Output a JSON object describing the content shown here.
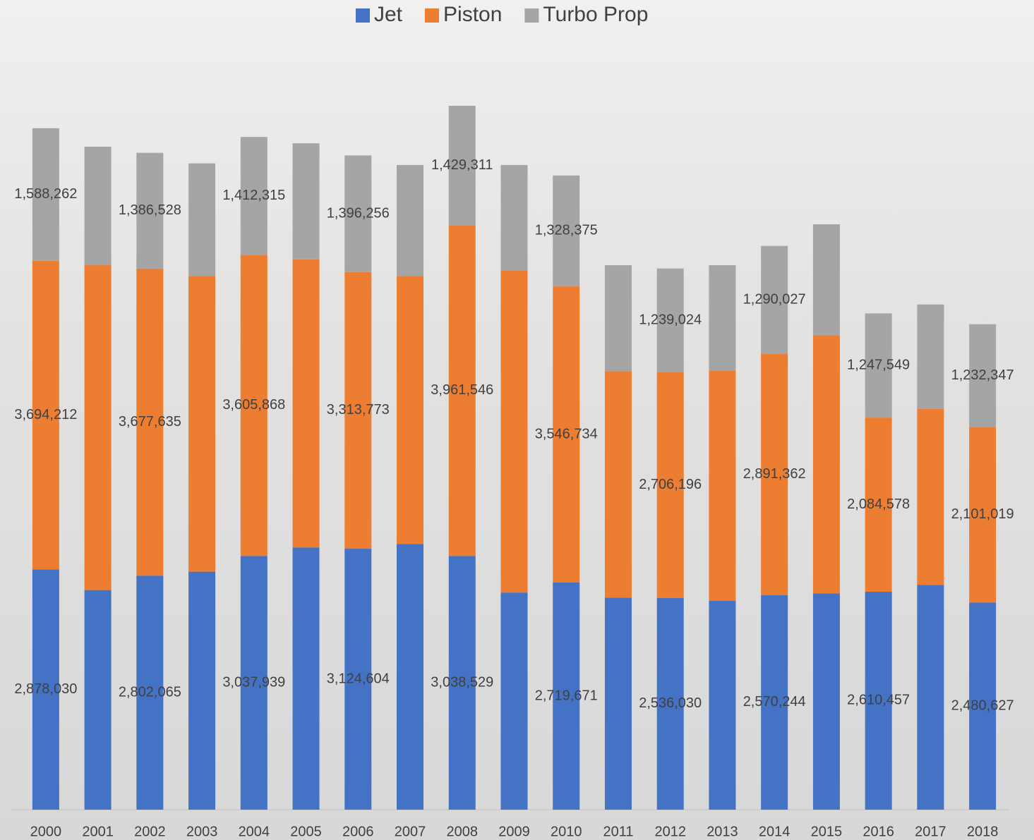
{
  "chart_data": {
    "type": "stacked-bar",
    "categories": [
      "2000",
      "2001",
      "2002",
      "2003",
      "2004",
      "2005",
      "2006",
      "2007",
      "2008",
      "2009",
      "2010",
      "2011",
      "2012",
      "2013",
      "2014",
      "2015",
      "2016",
      "2017",
      "2018"
    ],
    "series": [
      {
        "name": "Jet",
        "color": "#4472c4",
        "values": [
          2878030,
          2630000,
          2802065,
          2850000,
          3037939,
          3140000,
          3124604,
          3180000,
          3038529,
          2600000,
          2719671,
          2540000,
          2536030,
          2500000,
          2570244,
          2590000,
          2610457,
          2690000,
          2480627
        ],
        "value_labels": [
          "2,878,030",
          null,
          "2,802,065",
          null,
          "3,037,939",
          null,
          "3,124,604",
          null,
          "3,038,529",
          null,
          "2,719,671",
          null,
          "2,536,030",
          null,
          "2,570,244",
          null,
          "2,610,457",
          null,
          "2,480,627"
        ]
      },
      {
        "name": "Piston",
        "color": "#ed7d31",
        "values": [
          3694212,
          3890000,
          3677635,
          3540000,
          3605868,
          3450000,
          3313773,
          3210000,
          3961546,
          3860000,
          3546734,
          2710000,
          2706196,
          2760000,
          2891362,
          3090000,
          2084578,
          2110000,
          2101019
        ],
        "value_labels": [
          "3,694,212",
          null,
          "3,677,635",
          null,
          "3,605,868",
          null,
          "3,313,773",
          null,
          "3,961,546",
          null,
          "3,546,734",
          null,
          "2,706,196",
          null,
          "2,891,362",
          null,
          "2,084,578",
          null,
          "2,101,019"
        ]
      },
      {
        "name": "Turbo Prop",
        "color": "#a5a5a5",
        "values": [
          1588262,
          1420000,
          1386528,
          1350000,
          1412315,
          1390000,
          1396256,
          1330000,
          1429311,
          1260000,
          1328375,
          1270000,
          1239024,
          1260000,
          1290027,
          1330000,
          1247549,
          1250000,
          1232347
        ],
        "value_labels": [
          "1,588,262",
          null,
          "1,386,528",
          null,
          "1,412,315",
          null,
          "1,396,256",
          null,
          "1,429,311",
          null,
          "1,328,375",
          null,
          "1,239,024",
          null,
          "1,290,027",
          null,
          "1,247,549",
          null,
          "1,232,347"
        ]
      }
    ],
    "legend": "top"
  }
}
